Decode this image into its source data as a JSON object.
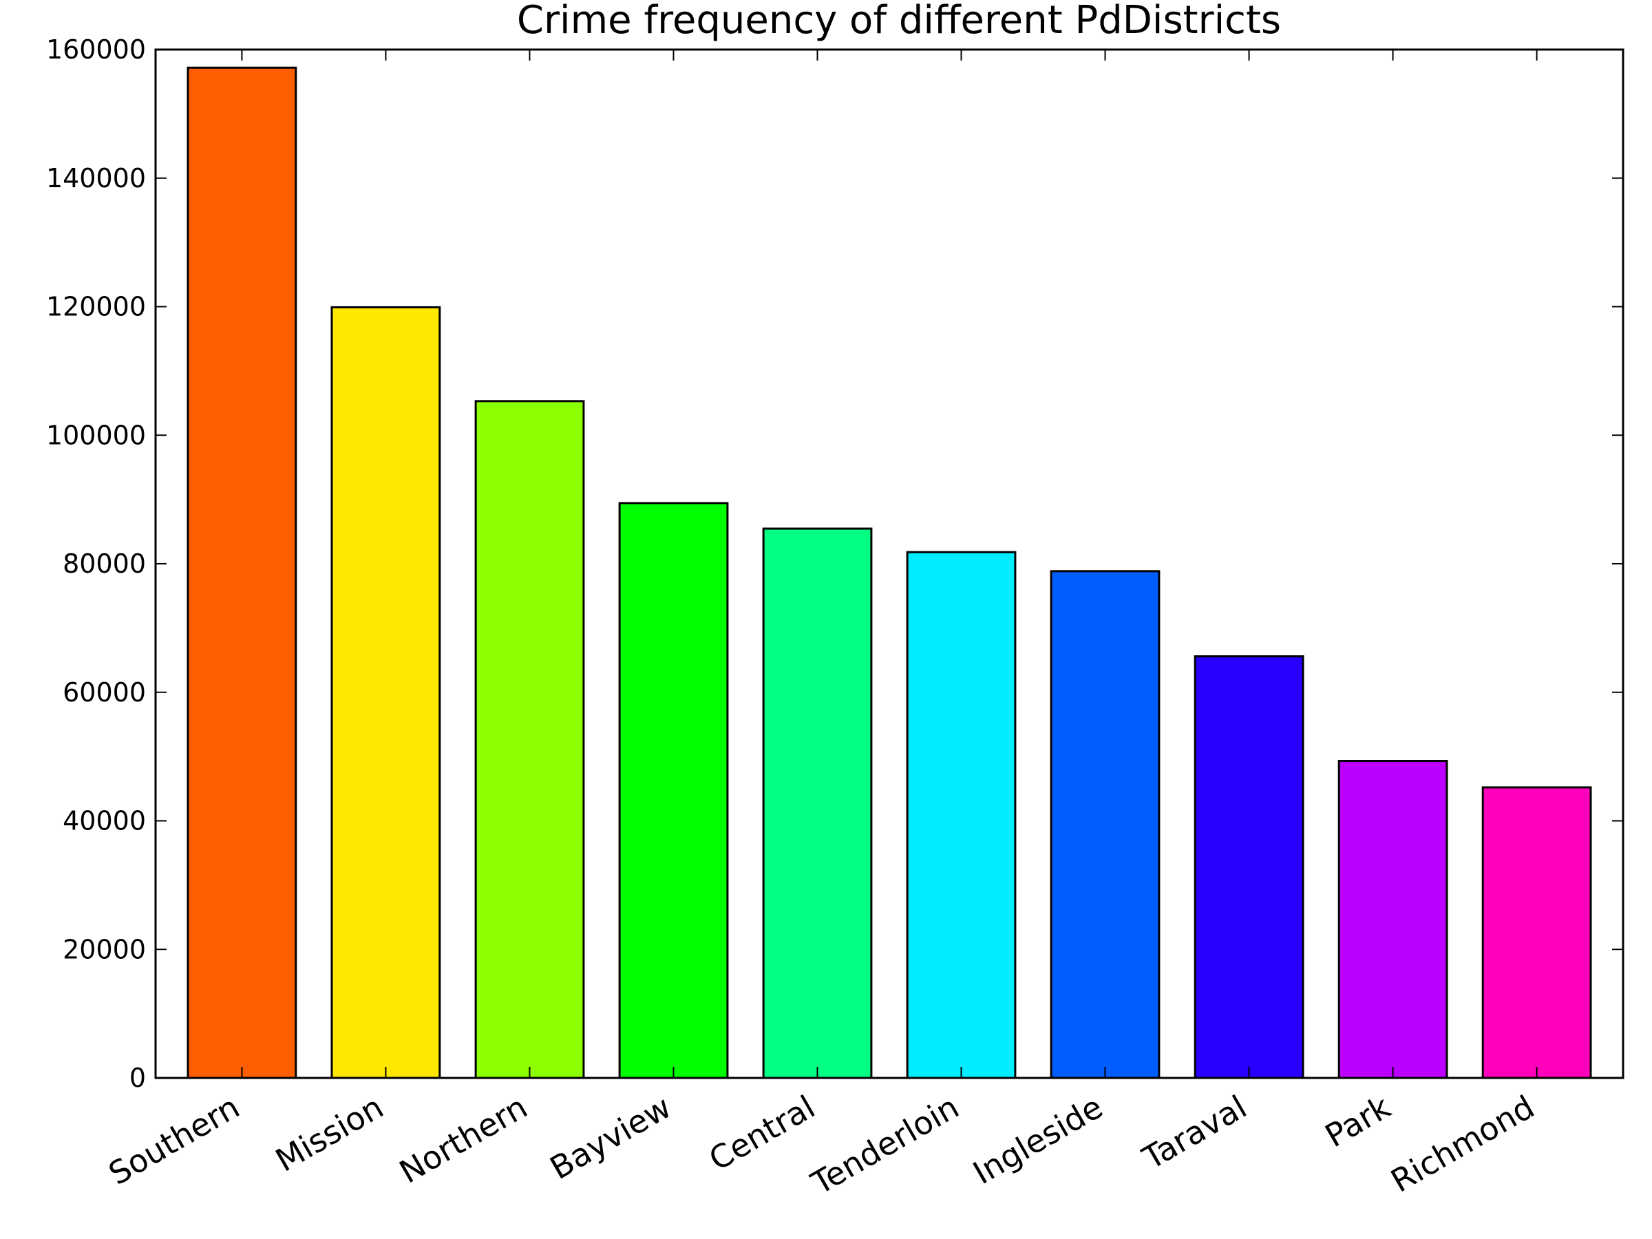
{
  "chart_data": {
    "type": "bar",
    "title": "Crime frequency of different PdDistricts",
    "xlabel": "",
    "ylabel": "",
    "categories": [
      "Southern",
      "Mission",
      "Northern",
      "Bayview",
      "Central",
      "Tenderloin",
      "Ingleside",
      "Taraval",
      "Park",
      "Richmond"
    ],
    "values": [
      157182,
      119908,
      105296,
      89431,
      85460,
      81809,
      78845,
      65596,
      49313,
      45209
    ],
    "colors": [
      "#ff5e00",
      "#ffe800",
      "#8cff00",
      "#00ff00",
      "#00ff82",
      "#00ecff",
      "#005eff",
      "#2800ff",
      "#bb00ff",
      "#ff00bb"
    ],
    "ylim": [
      0,
      160000
    ],
    "yticks": [
      0,
      20000,
      40000,
      60000,
      80000,
      100000,
      120000,
      140000,
      160000
    ],
    "ytick_labels": [
      "0",
      "20000",
      "40000",
      "60000",
      "80000",
      "100000",
      "120000",
      "140000",
      "160000"
    ],
    "grid": false,
    "legend": "none"
  }
}
